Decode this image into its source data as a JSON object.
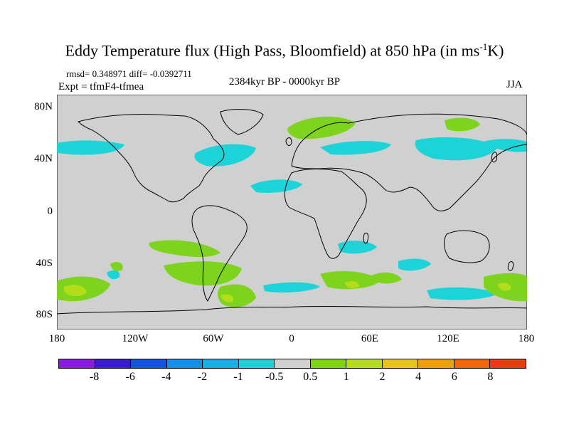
{
  "title_main": "Eddy Temperature flux (High Pass, Bloomfield) at 850 hPa (in ms",
  "title_sup": "-1",
  "title_end": "K)",
  "stats": "rmsd= 0.348971 diff= -0.0392711",
  "expt": "Expt = tfmF4-tfmea",
  "period": "2384kyr BP - 0000kyr BP",
  "season": "JJA",
  "y_ticks": [
    "80N",
    "40N",
    "0",
    "40S",
    "80S"
  ],
  "x_ticks": [
    "180",
    "120W",
    "60W",
    "0",
    "60E",
    "120E",
    "180"
  ],
  "colorbar": {
    "labels": [
      "-8",
      "-6",
      "-4",
      "-2",
      "-1",
      "-0.5",
      "0.5",
      "1",
      "2",
      "4",
      "6",
      "8"
    ],
    "colors": [
      "#8a1cd8",
      "#3a1cd8",
      "#1456d8",
      "#1a8edc",
      "#12b4dc",
      "#1cd4d8",
      "#d0d0d0",
      "#7ed41c",
      "#b4dc18",
      "#e8c414",
      "#e8a014",
      "#e86a14",
      "#e83a14"
    ]
  },
  "colors": {
    "land_ocean_background": "#d0d0d0",
    "coastline": "#000000",
    "negative_fill": "#1cd4d8",
    "positive_fill": "#7ed41c",
    "strong_positive_fill": "#b4dc18"
  }
}
